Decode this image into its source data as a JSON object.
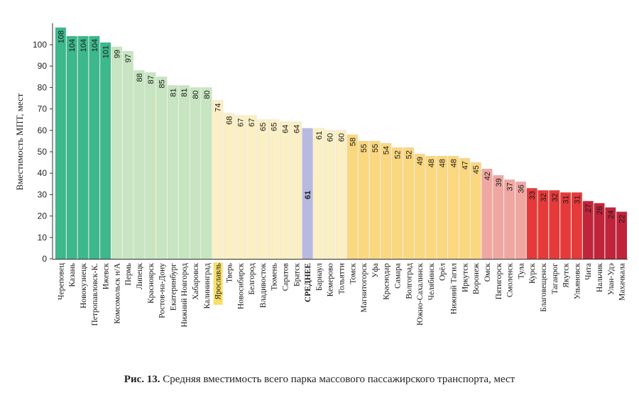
{
  "chart_data": {
    "type": "bar",
    "ylabel": "Вместимость МПТ, мест",
    "ylim": [
      0,
      110
    ],
    "yticks": [
      0,
      10,
      20,
      30,
      40,
      50,
      60,
      70,
      80,
      90,
      100
    ],
    "grid": false,
    "categories": [
      "Череповец",
      "Казань",
      "Новокузнецк",
      "Петропавловск-К.",
      "Ижевск",
      "Комсомольск н/А",
      "Пермь",
      "Липецк",
      "Красноярск",
      "Ростов-на-Дону",
      "Екатеринбург",
      "Нижний Новгород",
      "Хабаровск",
      "Калининград",
      "Ярославль",
      "Тверь",
      "Новосибирск",
      "Белгород",
      "Владивосток",
      "Тюмень",
      "Саратов",
      "Братск",
      "СРЕДНЕЕ",
      "Барнаул",
      "Кемерово",
      "Тольятти",
      "Томск",
      "Магнитогорск",
      "Уфа",
      "Краснодар",
      "Самара",
      "Волгоград",
      "Южно-Сахалинск",
      "Челябинск",
      "Орёл",
      "Нижний Тагил",
      "Иркутск",
      "Воронеж",
      "Омск",
      "Пятигорск",
      "Смоленск",
      "Тула",
      "Курск",
      "Благовещенск",
      "Таганрог",
      "Якутск",
      "Ульяновск",
      "Чита",
      "Нальчик",
      "Улан-Удэ",
      "Махачкала"
    ],
    "values": [
      108,
      104,
      104,
      104,
      101,
      99,
      97,
      88,
      87,
      85,
      81,
      81,
      80,
      80,
      74,
      68,
      67,
      67,
      65,
      65,
      64,
      64,
      61,
      61,
      60,
      60,
      58,
      55,
      55,
      54,
      52,
      52,
      49,
      48,
      48,
      48,
      47,
      45,
      42,
      39,
      37,
      36,
      33,
      32,
      32,
      31,
      31,
      27,
      26,
      24,
      22
    ],
    "colors": [
      "#3db88c",
      "#3db88c",
      "#3db88c",
      "#3db88c",
      "#3db88c",
      "#c7e5c0",
      "#c7e5c0",
      "#c7e5c0",
      "#c7e5c0",
      "#c7e5c0",
      "#c7e5c0",
      "#c7e5c0",
      "#c7e5c0",
      "#c7e5c0",
      "#fbefc4",
      "#fbefc4",
      "#fbefc4",
      "#fbefc4",
      "#fbefc4",
      "#fbefc4",
      "#fbefc4",
      "#fbefc4",
      "#b7b9de",
      "#fbefc4",
      "#fbefc4",
      "#fbefc4",
      "#fbd77f",
      "#fbd77f",
      "#fbd77f",
      "#fbd77f",
      "#fbd77f",
      "#fbd77f",
      "#fbd77f",
      "#fbd77f",
      "#fbd77f",
      "#fbd77f",
      "#fbd77f",
      "#fbd77f",
      "#f0a7a1",
      "#f0a7a1",
      "#f0a7a1",
      "#f0a7a1",
      "#e63a3a",
      "#e63a3a",
      "#e63a3a",
      "#e63a3a",
      "#e63a3a",
      "#c0243a",
      "#c0243a",
      "#c0243a",
      "#c0243a"
    ],
    "highlight_category": "Ярославль",
    "highlight_color": "#f7df6a",
    "bold_category": "СРЕДНЕЕ"
  },
  "caption": {
    "prefix": "Рис.",
    "number": "13.",
    "text": "Средняя вместимость всего парка массового пассажирского транспорта, мест"
  }
}
